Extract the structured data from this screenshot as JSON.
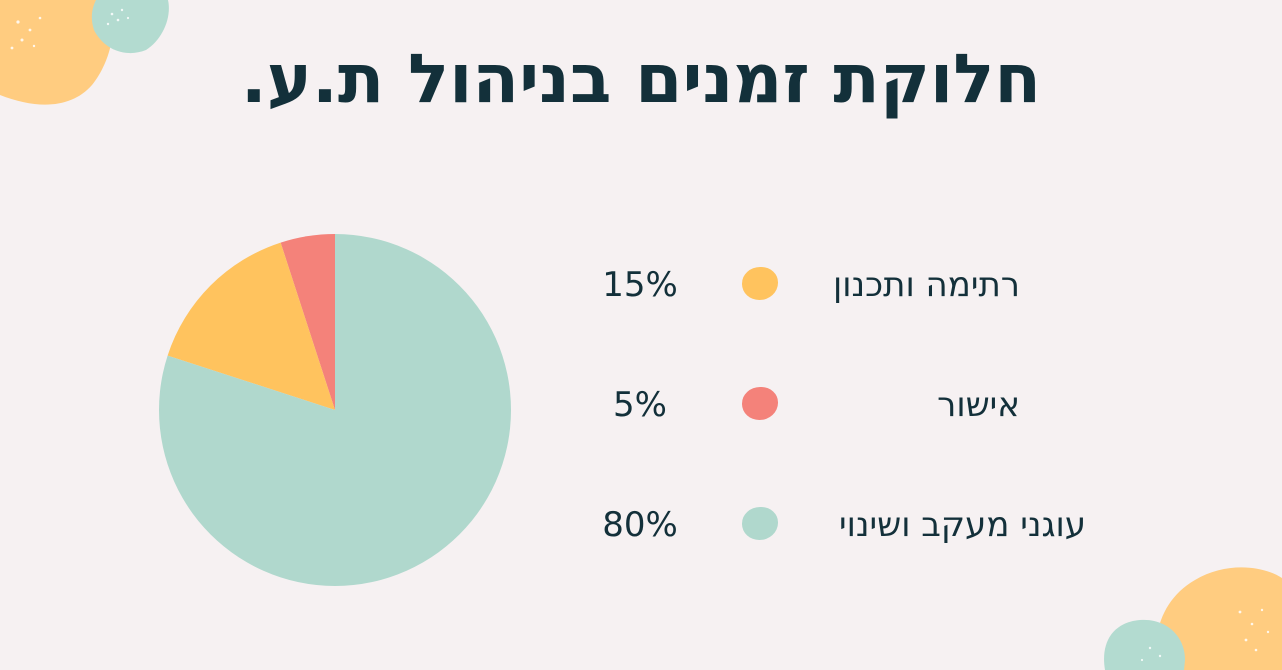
{
  "title": "חלוקת זמנים בניהול ת.ע.",
  "colors": {
    "background": "#f6f1f2",
    "title": "#13303a",
    "yellow": "#ffc35e",
    "red": "#f4827a",
    "teal": "#b0d8cd",
    "deco_yellow": "#ffcc80",
    "deco_teal": "#b3dbd0"
  },
  "chart_data": {
    "type": "pie",
    "title": "חלוקת זמנים בניהול ת.ע.",
    "slices": [
      {
        "label": "רתימה ותכנון",
        "value": 15,
        "display": "15%",
        "color": "#ffc35e"
      },
      {
        "label": "אישור",
        "value": 5,
        "display": "5%",
        "color": "#f4827a"
      },
      {
        "label": "עוגני מעקב ושינוי",
        "value": 80,
        "display": "80%",
        "color": "#b0d8cd"
      }
    ],
    "legend_placement": "right"
  }
}
